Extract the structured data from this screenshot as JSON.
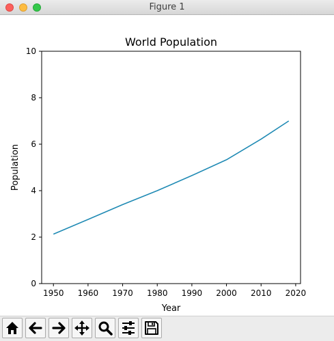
{
  "window": {
    "title": "Figure 1"
  },
  "chart_data": {
    "type": "line",
    "title": "World Population",
    "xlabel": "Year",
    "ylabel": "Population",
    "xlim": [
      1946.6,
      2021.4
    ],
    "ylim": [
      0,
      10
    ],
    "xticks": [
      1950,
      1960,
      1970,
      1980,
      1990,
      2000,
      2010,
      2020
    ],
    "yticks": [
      0,
      2,
      4,
      6,
      8,
      10
    ],
    "grid": false,
    "series": [
      {
        "color": "#1f8ab4",
        "x": [
          1950,
          1960,
          1970,
          1980,
          1990,
          2000,
          2010,
          2018
        ],
        "y": [
          2.13,
          2.76,
          3.4,
          4.0,
          4.65,
          5.33,
          6.22,
          7.0
        ]
      }
    ]
  },
  "toolbar": {
    "buttons": [
      {
        "icon": "home-icon"
      },
      {
        "icon": "back-arrow-icon"
      },
      {
        "icon": "forward-arrow-icon"
      },
      {
        "icon": "pan-move-icon"
      },
      {
        "icon": "zoom-magnifier-icon"
      },
      {
        "icon": "configure-subplots-icon"
      },
      {
        "icon": "save-floppy-icon"
      }
    ]
  }
}
